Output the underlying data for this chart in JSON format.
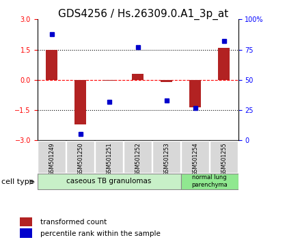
{
  "title": "GDS4256 / Hs.26309.0.A1_3p_at",
  "samples": [
    "GSM501249",
    "GSM501250",
    "GSM501251",
    "GSM501252",
    "GSM501253",
    "GSM501254",
    "GSM501255"
  ],
  "transformed_count": [
    1.5,
    -2.2,
    -0.05,
    0.3,
    -0.1,
    -1.35,
    1.6
  ],
  "percentile_rank": [
    88,
    5,
    32,
    77,
    33,
    27,
    82
  ],
  "ylim_left": [
    -3,
    3
  ],
  "ylim_right": [
    0,
    100
  ],
  "yticks_left": [
    -3,
    -1.5,
    0,
    1.5,
    3
  ],
  "yticks_right": [
    0,
    25,
    50,
    75,
    100
  ],
  "ytick_labels_right": [
    "0",
    "25",
    "50",
    "75",
    "100%"
  ],
  "hlines": [
    1.5,
    0,
    -1.5
  ],
  "hline_styles": [
    "dotted",
    "dashed",
    "dotted"
  ],
  "hline_colors": [
    "black",
    "red",
    "black"
  ],
  "bar_color": "#b22222",
  "dot_color": "#0000cc",
  "bar_width": 0.4,
  "group1_samples": [
    0,
    1,
    2,
    3,
    4
  ],
  "group1_label": "caseous TB granulomas",
  "group1_color": "#c8f0c8",
  "group2_samples": [
    5,
    6
  ],
  "group2_label": "normal lung\nparenchyma",
  "group2_color": "#90e890",
  "cell_type_label": "cell type",
  "legend_bar_label": "transformed count",
  "legend_dot_label": "percentile rank within the sample",
  "title_fontsize": 11,
  "tick_fontsize": 7,
  "label_fontsize": 8
}
